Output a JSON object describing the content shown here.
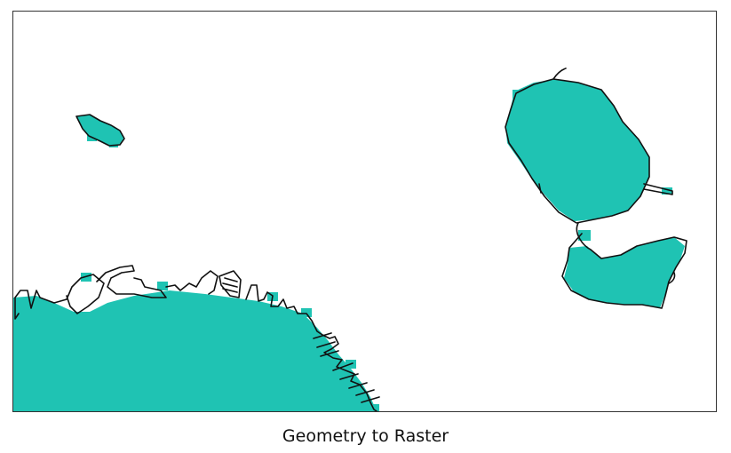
{
  "figure": {
    "caption": "Geometry to Raster"
  },
  "colors": {
    "raster_fill": "#1fc3b3",
    "outline": "#111111",
    "frame": "#333333",
    "background": "#ffffff"
  }
}
